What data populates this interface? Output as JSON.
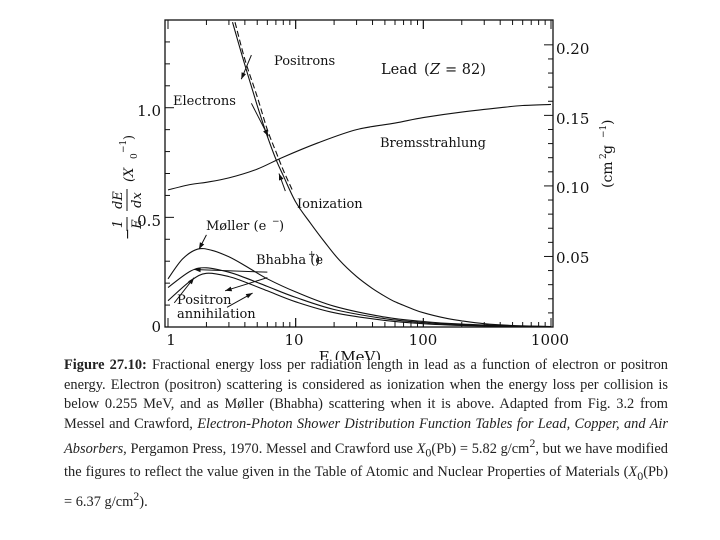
{
  "chart_data": {
    "type": "line",
    "title": "Lead (Z = 82)",
    "title_parts": {
      "name": "Lead",
      "lparen": "(",
      "z": "Z",
      "eq": "= 82)"
    },
    "xlabel": "E (MeV)",
    "x_scale": "log",
    "xlim": [
      1,
      1000
    ],
    "ylim": [
      0,
      1.4
    ],
    "y2lim": [
      0,
      0.2176
    ],
    "x_ticks": [
      {
        "v": 1,
        "label": "1"
      },
      {
        "v": 10,
        "label": "10"
      },
      {
        "v": 100,
        "label": "100"
      },
      {
        "v": 1000,
        "label": "1000"
      }
    ],
    "y_ticks": [
      {
        "v": 0,
        "label": "0"
      },
      {
        "v": 0.5,
        "label": "0.5"
      },
      {
        "v": 1.0,
        "label": "1.0"
      }
    ],
    "y2_ticks": [
      {
        "v": 0.05,
        "label": "0.05"
      },
      {
        "v": 0.1,
        "label": "0.10"
      },
      {
        "v": 0.15,
        "label": "0.15"
      },
      {
        "v": 0.2,
        "label": "0.20"
      }
    ],
    "ylabel_left": {
      "minus": "−",
      "num": "1",
      "den": "E",
      "num2": "dE",
      "den2": "dx",
      "unit": "(X",
      "sub": "0",
      "sup": "−1",
      "close": ")"
    },
    "ylabel_right": {
      "text": "(cm",
      "sup1": "2",
      "g": " g",
      "sup2": "−1",
      "close": ")"
    },
    "series": [
      {
        "name": "Bremsstrahlung",
        "style": "solid",
        "x": [
          1,
          1.5,
          2,
          3,
          5,
          8,
          15,
          30,
          60,
          100,
          200,
          400,
          600,
          1000
        ],
        "y": [
          0.625,
          0.65,
          0.66,
          0.68,
          0.72,
          0.775,
          0.84,
          0.9,
          0.93,
          0.955,
          0.98,
          1.0,
          1.01,
          1.015
        ]
      },
      {
        "name": "Ionization",
        "style": "solid",
        "x": [
          3.2,
          4,
          5,
          6,
          7,
          8,
          10,
          13,
          17,
          22,
          30,
          40,
          50,
          60,
          80,
          100,
          150,
          200,
          300,
          500,
          1000
        ],
        "y": [
          1.39,
          1.195,
          1.01,
          0.87,
          0.765,
          0.69,
          0.57,
          0.475,
          0.385,
          0.305,
          0.23,
          0.175,
          0.14,
          0.115,
          0.085,
          0.065,
          0.04,
          0.028,
          0.015,
          0.007,
          0.002
        ]
      },
      {
        "name": "Positrons",
        "style": "dashed",
        "x": [
          3.35,
          4,
          5,
          6,
          7,
          8,
          9.5
        ],
        "y": [
          1.39,
          1.22,
          1.05,
          0.9,
          0.8,
          0.715,
          0.62
        ]
      },
      {
        "name": "Møller (e−)",
        "style": "solid",
        "x": [
          1,
          1.3,
          1.7,
          2.2,
          3,
          4,
          6,
          10,
          20,
          50,
          100,
          200,
          500,
          1000
        ],
        "y": [
          0.22,
          0.31,
          0.355,
          0.35,
          0.32,
          0.28,
          0.22,
          0.16,
          0.095,
          0.045,
          0.025,
          0.013,
          0.005,
          0.002
        ]
      },
      {
        "name": "Bhabha (e+)",
        "style": "solid",
        "x": [
          1,
          1.5,
          2,
          3,
          4,
          6,
          10,
          20,
          50,
          100,
          200,
          500,
          1000
        ],
        "y": [
          0.18,
          0.255,
          0.27,
          0.25,
          0.225,
          0.185,
          0.135,
          0.08,
          0.038,
          0.02,
          0.01,
          0.004,
          0.002
        ]
      },
      {
        "name": "Positron annihilation",
        "style": "solid",
        "x": [
          1,
          1.5,
          2,
          3,
          4,
          6,
          10,
          20,
          50,
          100,
          200,
          500,
          1000
        ],
        "y": [
          0.12,
          0.21,
          0.245,
          0.23,
          0.205,
          0.165,
          0.115,
          0.065,
          0.03,
          0.015,
          0.007,
          0.003,
          0.001
        ]
      }
    ],
    "annotations": {
      "positrons": "Positrons",
      "electrons": "Electrons",
      "bremsstrahlung": "Bremsstrahlung",
      "ionization": "Ionization",
      "moller": "Møller (e",
      "moller_sup": "−",
      "moller_close": ")",
      "bhabha": "Bhabha (e",
      "bhabha_sup": "+",
      "bhabha_close": ")",
      "annihilation_1": "Positron",
      "annihilation_2": "annihilation"
    }
  },
  "caption": {
    "label": "Figure 27.10:",
    "t1": " Fractional energy loss per radiation length in lead as a function of electron or positron energy. Electron (positron) scattering is considered as ionization when the energy loss per collision is below 0.255 MeV, and as Møller (Bhabha) scattering when it is above. Adapted from Fig. 3.2 from Messel and Crawford, ",
    "book": "Electron-Photon Shower Distribution Function Tables for Lead, Copper, and Air Absorbers",
    "t2": ", Pergamon Press, 1970. Messel and Crawford use ",
    "x0a": "X",
    "x0a_sub": "0",
    "x0a_val": "(Pb) = 5.82 g/cm",
    "x0a_sup": "2",
    "t3": ", but we have modified the figures to reflect the value given in the Table of Atomic and Nuclear Properties of Materials (",
    "x0b": "X",
    "x0b_sub": "0",
    "x0b_val": "(Pb) = 6.37 g/cm",
    "x0b_sup": "2",
    "t4": ")."
  }
}
